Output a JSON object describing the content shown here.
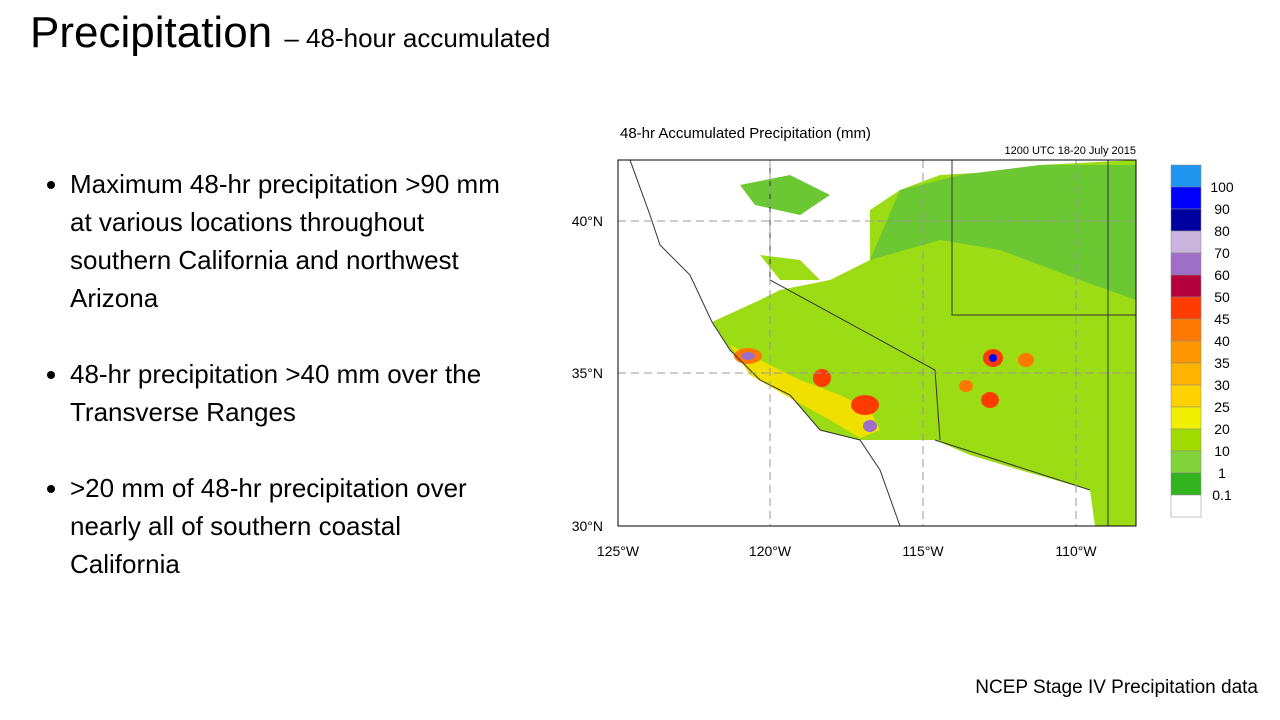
{
  "header": {
    "title": "Precipitation",
    "subtitle": "– 48-hour accumulated"
  },
  "bullets": [
    "Maximum 48-hr precipitation >90 mm  at various locations throughout southern California and northwest Arizona",
    "48-hr precipitation >40 mm over the Transverse Ranges",
    ">20 mm of 48-hr precipitation over nearly all of southern coastal California"
  ],
  "map": {
    "title": "48-hr Accumulated Precipitation (mm)",
    "date": "1200 UTC 18-20 July 2015",
    "lon_labels": [
      "125°W",
      "120°W",
      "115°W",
      "110°W"
    ],
    "lat_labels": [
      "40°N",
      "35°N",
      "30°N"
    ],
    "colorbar": {
      "labels": [
        "100",
        "90",
        "80",
        "70",
        "60",
        "50",
        "45",
        "40",
        "35",
        "30",
        "25",
        "20",
        "10",
        "1",
        "0.1"
      ],
      "colors": [
        "#1e96f0",
        "#0000ff",
        "#0000a0",
        "#c8b4dc",
        "#9e6ec8",
        "#b4003c",
        "#ff3c00",
        "#ff7800",
        "#ff9600",
        "#ffb400",
        "#ffd200",
        "#f0f000",
        "#a0dc00",
        "#82d23c",
        "#32b41e",
        "#ffffff"
      ]
    }
  },
  "footer": "NCEP Stage IV Precipitation data"
}
